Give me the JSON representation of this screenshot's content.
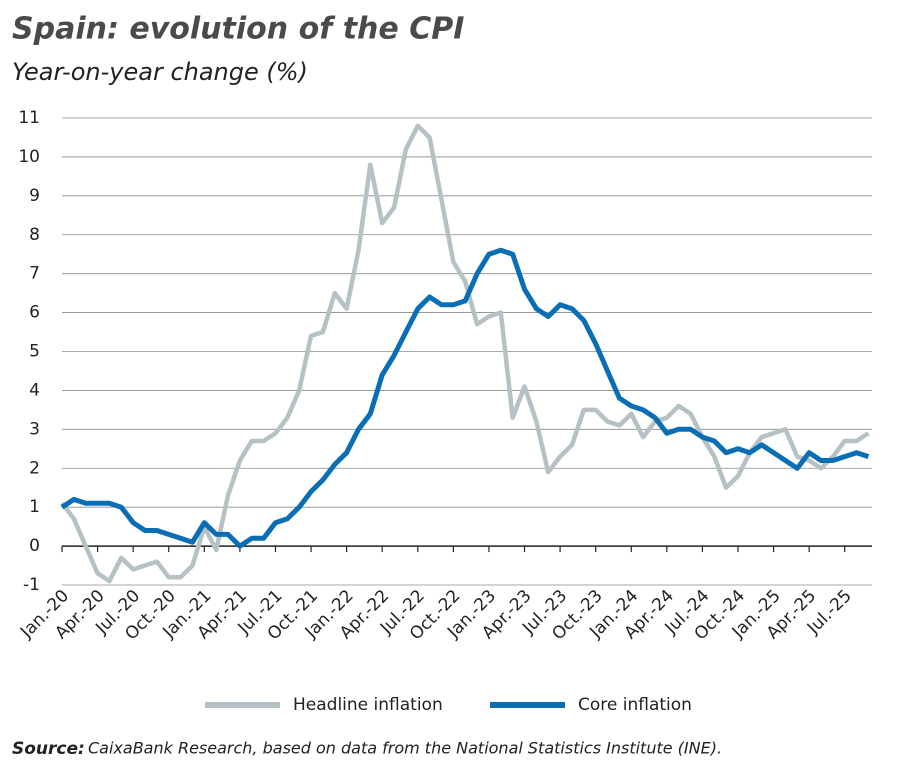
{
  "chart_data": {
    "type": "line",
    "title": "Spain: evolution of the CPI",
    "subtitle": "Year-on-year change (%)",
    "source_label": "Source:",
    "source_text": "CaixaBank Research, based on data from the National Statistics Institute (INE).",
    "categories": [
      "Jan.-20",
      null,
      null,
      "Apr.-20",
      null,
      null,
      "Jul.-20",
      null,
      null,
      "Oct.-20",
      null,
      null,
      "Jan.-21",
      null,
      null,
      "Apr.-21",
      null,
      null,
      "Jul.-21",
      null,
      null,
      "Oct.-21",
      null,
      null,
      "Jan.-22",
      null,
      null,
      "Apr.-22",
      null,
      null,
      "Jul.-22",
      null,
      null,
      "Oct.-22",
      null,
      null,
      "Jan.-23",
      null,
      null,
      "Apr.-23",
      null,
      null,
      "Jul.-23",
      null,
      null,
      "Oct.-23",
      null,
      null,
      "Jan.-24",
      null,
      null,
      "Apr.-24",
      null,
      null,
      "Jul.-24",
      null,
      null,
      "Oct.-24",
      null,
      null,
      "Jan.-25",
      null,
      null,
      "Apr.-25",
      null,
      null,
      "Jul.-25",
      null,
      null
    ],
    "series": [
      {
        "name": "Headline inflation",
        "color": "#b5c1c4",
        "values": [
          1.1,
          0.7,
          0.0,
          -0.7,
          -0.9,
          -0.3,
          -0.6,
          -0.5,
          -0.4,
          -0.8,
          -0.8,
          -0.5,
          0.5,
          -0.1,
          1.3,
          2.2,
          2.7,
          2.7,
          2.9,
          3.3,
          4.0,
          5.4,
          5.5,
          6.5,
          6.1,
          7.6,
          9.8,
          8.3,
          8.7,
          10.2,
          10.8,
          10.5,
          8.9,
          7.3,
          6.8,
          5.7,
          5.9,
          6.0,
          3.3,
          4.1,
          3.2,
          1.9,
          2.3,
          2.6,
          3.5,
          3.5,
          3.2,
          3.1,
          3.4,
          2.8,
          3.2,
          3.3,
          3.6,
          3.4,
          2.8,
          2.3,
          1.5,
          1.8,
          2.4,
          2.8,
          2.9,
          3.0,
          2.3,
          2.2,
          2.0,
          2.3,
          2.7,
          2.7,
          2.9
        ]
      },
      {
        "name": "Core inflation",
        "color": "#0a6eb4",
        "values": [
          1.0,
          1.2,
          1.1,
          1.1,
          1.1,
          1.0,
          0.6,
          0.4,
          0.4,
          0.3,
          0.2,
          0.1,
          0.6,
          0.3,
          0.3,
          0.0,
          0.2,
          0.2,
          0.6,
          0.7,
          1.0,
          1.4,
          1.7,
          2.1,
          2.4,
          3.0,
          3.4,
          4.4,
          4.9,
          5.5,
          6.1,
          6.4,
          6.2,
          6.2,
          6.3,
          7.0,
          7.5,
          7.6,
          7.5,
          6.6,
          6.1,
          5.9,
          6.2,
          6.1,
          5.8,
          5.2,
          4.5,
          3.8,
          3.6,
          3.5,
          3.3,
          2.9,
          3.0,
          3.0,
          2.8,
          2.7,
          2.4,
          2.5,
          2.4,
          2.6,
          2.4,
          2.2,
          2.0,
          2.4,
          2.2,
          2.2,
          2.3,
          2.4,
          2.3
        ]
      }
    ],
    "ylim": [
      -1,
      11
    ],
    "yticks": [
      -1,
      0,
      1,
      2,
      3,
      4,
      5,
      6,
      7,
      8,
      9,
      10,
      11
    ],
    "grid": true
  }
}
